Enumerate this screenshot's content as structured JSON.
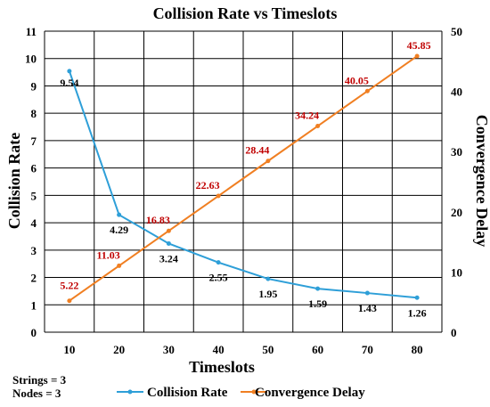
{
  "chart_data": {
    "type": "line",
    "title": "Collision Rate vs Timeslots",
    "xlabel": "Timeslots",
    "ylabel_left": "Collision Rate",
    "ylabel_right": "Convergence Delay",
    "x": [
      10,
      20,
      30,
      40,
      50,
      60,
      70,
      80
    ],
    "ylim_left": [
      0,
      11
    ],
    "yticks_left": [
      0,
      1,
      2,
      3,
      4,
      5,
      6,
      7,
      8,
      9,
      10,
      11
    ],
    "ylim_right": [
      0,
      50
    ],
    "yticks_right": [
      0,
      10,
      20,
      30,
      40,
      50
    ],
    "grid": true,
    "legend_position": "bottom",
    "series": [
      {
        "name": "Collision Rate",
        "axis": "left",
        "color": "#2e9fd8",
        "values": [
          9.54,
          4.29,
          3.24,
          2.55,
          1.95,
          1.59,
          1.43,
          1.26
        ],
        "labels": [
          "9.54",
          "4.29",
          "3.24",
          "2.55",
          "1.95",
          "1.59",
          "1.43",
          "1.26"
        ],
        "label_color": "#000000"
      },
      {
        "name": "Convergence Delay",
        "axis": "right",
        "color": "#f07f22",
        "values": [
          5.22,
          11.03,
          16.83,
          22.63,
          28.44,
          34.24,
          40.05,
          45.85
        ],
        "labels": [
          "5.22",
          "11.03",
          "16.83",
          "22.63",
          "28.44",
          "34.24",
          "40.05",
          "45.85"
        ],
        "label_color": "#c00000"
      }
    ]
  },
  "notes": [
    "Strings = 3",
    "Nodes = 3"
  ]
}
